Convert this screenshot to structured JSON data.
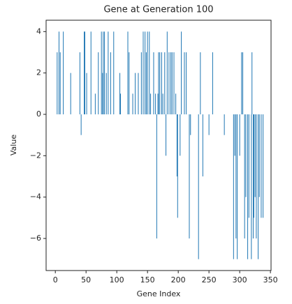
{
  "chart_data": {
    "type": "bar",
    "title": "Gene at Generation 100",
    "x_label": "Gene Index",
    "y_label": "Value",
    "x": [
      3,
      6,
      8,
      13,
      25,
      40,
      42,
      47,
      48,
      51,
      58,
      65,
      70,
      75,
      77,
      78,
      80,
      83,
      86,
      90,
      95,
      105,
      106,
      118,
      120,
      126,
      130,
      135,
      140,
      143,
      146,
      148,
      150,
      153,
      155,
      160,
      163,
      165,
      167,
      168,
      170,
      173,
      175,
      178,
      180,
      182,
      185,
      188,
      190,
      193,
      196,
      198,
      199,
      203,
      205,
      210,
      213,
      218,
      220,
      233,
      236,
      240,
      250,
      256,
      275,
      290,
      292,
      294,
      296,
      300,
      303,
      305,
      308,
      310,
      313,
      315,
      319,
      320,
      322,
      323,
      325,
      327,
      330,
      332,
      335,
      338
    ],
    "values": [
      3,
      4,
      3,
      4,
      2,
      3,
      -1,
      4,
      4,
      2,
      4,
      1,
      3,
      4,
      2,
      4,
      4,
      2,
      4,
      3,
      4,
      2,
      1,
      4,
      3,
      1,
      2,
      2,
      3,
      4,
      4,
      3,
      4,
      4,
      1,
      3,
      1,
      -6,
      1,
      3,
      3,
      3,
      1,
      3,
      -2,
      4,
      3,
      3,
      3,
      3,
      1,
      -3,
      -5,
      -2,
      4,
      3,
      3,
      -6,
      -1,
      -7,
      3,
      -3,
      -1,
      3,
      -1,
      -7,
      -2,
      -6,
      -7,
      -2,
      3,
      3,
      -6,
      -4,
      -7,
      -5,
      -7,
      3,
      -6,
      -5,
      -4,
      -6,
      -7,
      -4,
      -5,
      -5
    ],
    "color": "#1f77b4",
    "xlim": [
      -15,
      351
    ],
    "ylim": [
      -7.55,
      4.55
    ],
    "xticks": [
      0,
      50,
      100,
      150,
      200,
      250,
      300,
      350
    ],
    "yticks": [
      {
        "value": -6,
        "label": "−6"
      },
      {
        "value": -4,
        "label": "−4"
      },
      {
        "value": -2,
        "label": "−2"
      },
      0,
      2,
      4
    ]
  }
}
